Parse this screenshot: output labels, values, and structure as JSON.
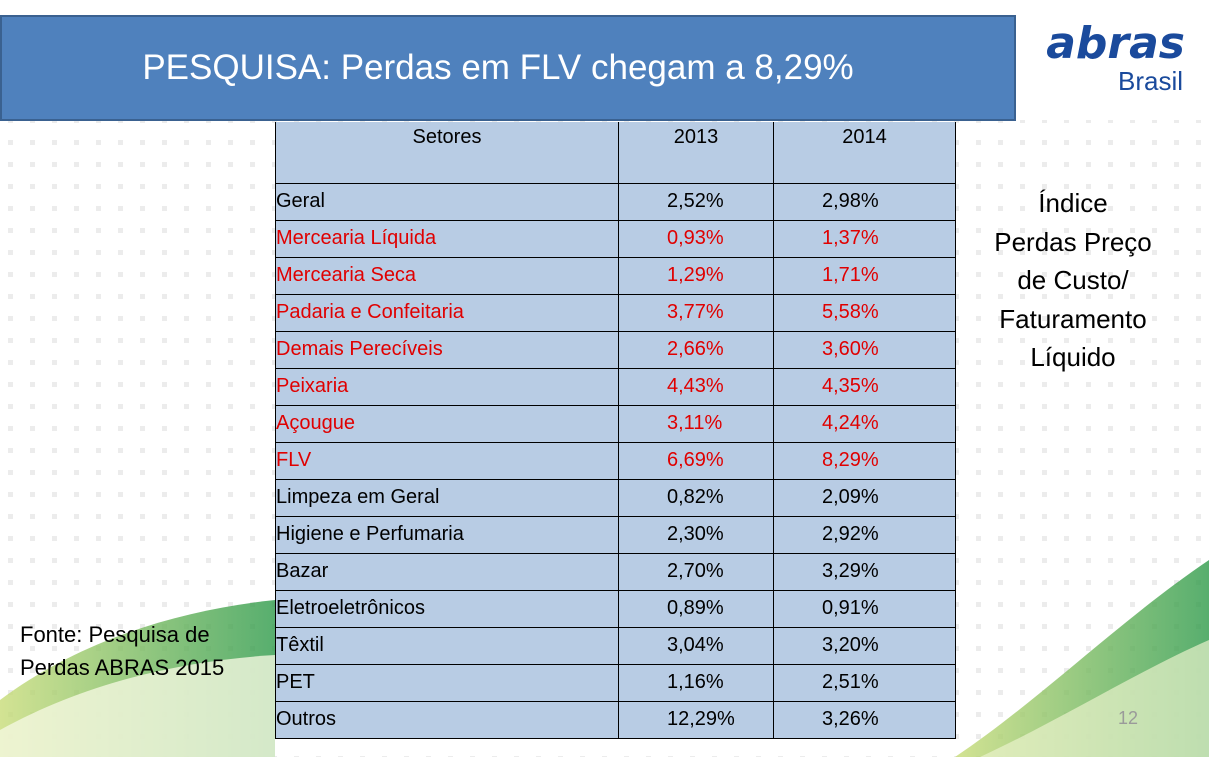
{
  "header": {
    "title": "PESQUISA: Perdas em FLV chegam a 8,29%"
  },
  "logo": {
    "name": "abras",
    "country": "Brasil"
  },
  "table": {
    "columns": [
      "Setores",
      "2013",
      "2014"
    ],
    "rows": [
      {
        "cells": [
          "Geral",
          "2,52%",
          "2,98%"
        ],
        "color": "#000000"
      },
      {
        "cells": [
          "Mercearia Líquida",
          "0,93%",
          "1,37%"
        ],
        "color": "#e00000"
      },
      {
        "cells": [
          "Mercearia Seca",
          "1,29%",
          "1,71%"
        ],
        "color": "#e00000"
      },
      {
        "cells": [
          "Padaria e Confeitaria",
          "3,77%",
          "5,58%"
        ],
        "color": "#e00000"
      },
      {
        "cells": [
          "Demais Perecíveis",
          "2,66%",
          "3,60%"
        ],
        "color": "#e00000"
      },
      {
        "cells": [
          "Peixaria",
          "4,43%",
          "4,35%"
        ],
        "color": "#e00000"
      },
      {
        "cells": [
          "Açougue",
          "3,11%",
          "4,24%"
        ],
        "color": "#e00000"
      },
      {
        "cells": [
          "FLV",
          "6,69%",
          "8,29%"
        ],
        "color": "#e00000"
      },
      {
        "cells": [
          "Limpeza em Geral",
          "0,82%",
          "2,09%"
        ],
        "color": "#000000"
      },
      {
        "cells": [
          "Higiene e Perfumaria",
          "2,30%",
          "2,92%"
        ],
        "color": "#000000"
      },
      {
        "cells": [
          "Bazar",
          "2,70%",
          "3,29%"
        ],
        "color": "#000000"
      },
      {
        "cells": [
          "Eletroeletrônicos",
          "0,89%",
          "0,91%"
        ],
        "color": "#000000"
      },
      {
        "cells": [
          "Têxtil",
          "3,04%",
          "3,20%"
        ],
        "color": "#000000"
      },
      {
        "cells": [
          "PET",
          "1,16%",
          "2,51%"
        ],
        "color": "#000000"
      },
      {
        "cells": [
          "Outros",
          "12,29%",
          "3,26%"
        ],
        "color": "#000000"
      }
    ]
  },
  "side_note": {
    "lines": [
      "Índice",
      "Perdas Preço",
      "de Custo/",
      "Faturamento",
      "Líquido"
    ]
  },
  "source": {
    "lines": [
      "Fonte: Pesquisa de",
      "Perdas ABRAS 2015"
    ]
  },
  "page_number": "12"
}
